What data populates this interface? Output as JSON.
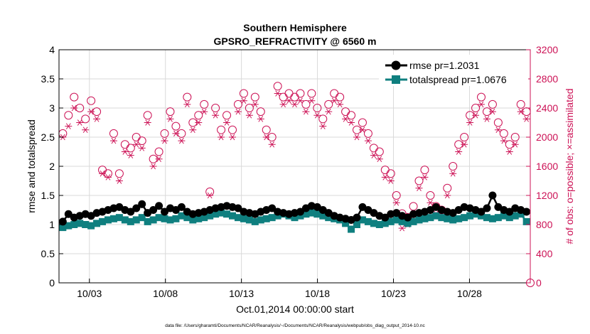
{
  "chart_data": {
    "type": "line",
    "title": "Southern Hemisphere",
    "subtitle": "GPSRO_REFRACTIVITY @ 6560 m",
    "xlabel": "Oct.01,2014 00:00:00 start",
    "ylabel": "rmse and totalspread",
    "y2label": "# of obs: o=possible; ×=assimilated",
    "footnote": "data file: /Users/gharamti/Documents/NCAR/Reanalysis/~/Documents/NCAR/Reanalysis/webpub/obs_diag_output_2014-10.nc",
    "x_ticks": [
      {
        "value": 3,
        "label": "10/03"
      },
      {
        "value": 8,
        "label": "10/08"
      },
      {
        "value": 13,
        "label": "10/13"
      },
      {
        "value": 18,
        "label": "10/18"
      },
      {
        "value": 23,
        "label": "10/23"
      },
      {
        "value": 28,
        "label": "10/28"
      }
    ],
    "xlim": [
      1,
      32
    ],
    "ylim": [
      0,
      4
    ],
    "y_ticks": [
      0,
      0.5,
      1,
      1.5,
      2,
      2.5,
      3,
      3.5,
      4
    ],
    "y2lim": [
      0,
      3200
    ],
    "y2_ticks": [
      0,
      400,
      800,
      1200,
      1600,
      2000,
      2400,
      2800,
      3200
    ],
    "grid": true,
    "legend_position": "top-right",
    "colors": {
      "rmse": "#000000",
      "totalspread": "#0f7f7f",
      "obs": "#cc1155",
      "grid": "#d9d9d9"
    },
    "series": [
      {
        "name": "rmse pr=1.2031",
        "marker": "filled-circle",
        "values": [
          1.05,
          1.18,
          1.12,
          1.15,
          1.18,
          1.15,
          1.2,
          1.22,
          1.25,
          1.28,
          1.3,
          1.25,
          1.22,
          1.28,
          1.35,
          1.2,
          1.25,
          1.32,
          1.22,
          1.28,
          1.25,
          1.3,
          1.22,
          1.18,
          1.2,
          1.22,
          1.25,
          1.28,
          1.3,
          1.32,
          1.3,
          1.28,
          1.22,
          1.2,
          1.18,
          1.22,
          1.25,
          1.28,
          1.22,
          1.2,
          1.18,
          1.2,
          1.22,
          1.28,
          1.32,
          1.3,
          1.25,
          1.2,
          1.15,
          1.12,
          1.1,
          1.08,
          1.12,
          1.3,
          1.25,
          1.2,
          1.15,
          1.12,
          1.18,
          1.2,
          1.15,
          1.12,
          1.18,
          1.2,
          1.22,
          1.25,
          1.3,
          1.25,
          1.22,
          1.2,
          1.25,
          1.3,
          1.28,
          1.25,
          1.22,
          1.28,
          1.5,
          1.3,
          1.25,
          1.22,
          1.28,
          1.25,
          1.22
        ]
      },
      {
        "name": "totalspread pr=1.0676",
        "marker": "filled-square",
        "values": [
          0.95,
          0.98,
          1.0,
          1.02,
          1.0,
          0.98,
          1.02,
          1.05,
          1.08,
          1.1,
          1.12,
          1.08,
          1.05,
          1.08,
          1.12,
          1.05,
          1.08,
          1.12,
          1.1,
          1.08,
          1.1,
          1.15,
          1.12,
          1.08,
          1.1,
          1.12,
          1.15,
          1.18,
          1.2,
          1.18,
          1.15,
          1.12,
          1.1,
          1.08,
          1.05,
          1.08,
          1.1,
          1.12,
          1.15,
          1.18,
          1.15,
          1.12,
          1.15,
          1.18,
          1.2,
          1.18,
          1.15,
          1.12,
          1.1,
          1.08,
          1.02,
          0.92,
          1.0,
          1.08,
          1.05,
          1.02,
          1.0,
          1.02,
          1.05,
          1.08,
          1.05,
          1.02,
          1.05,
          1.08,
          1.1,
          1.12,
          1.15,
          1.12,
          1.1,
          1.08,
          1.1,
          1.12,
          1.15,
          1.18,
          1.15,
          1.12,
          1.1,
          1.12,
          1.15,
          1.12,
          1.15,
          1.18,
          1.05
        ]
      },
      {
        "name": "# possible",
        "marker": "open-circle",
        "axis": "right",
        "values": [
          2050,
          2300,
          2550,
          2400,
          2250,
          2500,
          2350,
          1550,
          1500,
          2050,
          1500,
          1900,
          1850,
          2000,
          1950,
          2300,
          1700,
          1800,
          2050,
          2350,
          2150,
          2050,
          2550,
          2200,
          2300,
          2450,
          1250,
          2400,
          2100,
          2300,
          2100,
          2450,
          2600,
          2400,
          2550,
          2350,
          2100,
          2000,
          2700,
          2550,
          2600,
          2550,
          2600,
          2450,
          2600,
          2400,
          2250,
          2450,
          2600,
          2550,
          2350,
          2300,
          2100,
          2200,
          2050,
          1850,
          1800,
          1550,
          1500,
          1200,
          950,
          900,
          1050,
          1400,
          1550,
          1200,
          1050,
          1000,
          1300,
          1600,
          1900,
          2000,
          2300,
          2400,
          2550,
          2350,
          2450,
          2200,
          2050,
          1900,
          2000,
          2450,
          2350
        ]
      },
      {
        "name": "# assimilated",
        "marker": "asterisk",
        "axis": "right",
        "values": [
          2000,
          2150,
          2400,
          2200,
          2100,
          2350,
          2250,
          1500,
          1450,
          1950,
          1400,
          1800,
          1750,
          1900,
          1850,
          2200,
          1600,
          1700,
          1950,
          2250,
          2050,
          1950,
          2450,
          2100,
          2200,
          2350,
          1200,
          2300,
          2000,
          2200,
          2000,
          2350,
          2500,
          2300,
          2450,
          2250,
          2000,
          1900,
          2600,
          2450,
          2500,
          2450,
          2500,
          2350,
          2500,
          2300,
          2150,
          2350,
          2500,
          2450,
          2250,
          2200,
          2000,
          2100,
          1950,
          1750,
          1700,
          1450,
          1400,
          1100,
          750,
          800,
          950,
          1300,
          1450,
          1100,
          950,
          900,
          1200,
          1500,
          1800,
          1900,
          2200,
          2300,
          2450,
          2250,
          2350,
          2100,
          1950,
          1800,
          1900,
          2350,
          2250
        ]
      }
    ]
  }
}
